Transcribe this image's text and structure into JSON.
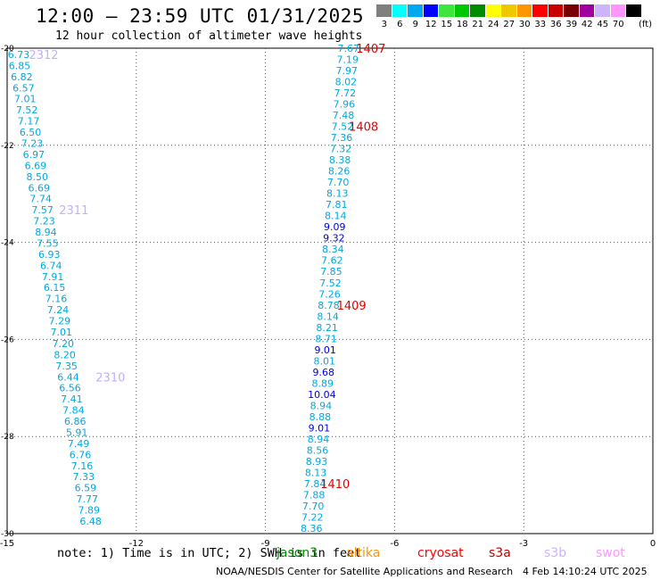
{
  "header": {
    "title": "12:00 — 23:59 UTC 01/31/2025",
    "subtitle": "12 hour collection of altimeter wave heights"
  },
  "legend": {
    "unit": "(ft)",
    "bins": [
      {
        "label": "3",
        "color": "#7f7f7f"
      },
      {
        "label": "6",
        "color": "#00ffff"
      },
      {
        "label": "9",
        "color": "#00a8f0"
      },
      {
        "label": "12",
        "color": "#0000ff"
      },
      {
        "label": "15",
        "color": "#3ce63c"
      },
      {
        "label": "18",
        "color": "#00c800"
      },
      {
        "label": "21",
        "color": "#008c00"
      },
      {
        "label": "24",
        "color": "#ffff00"
      },
      {
        "label": "27",
        "color": "#f0c800"
      },
      {
        "label": "30",
        "color": "#ff9600"
      },
      {
        "label": "33",
        "color": "#ff0000"
      },
      {
        "label": "36",
        "color": "#c80000"
      },
      {
        "label": "39",
        "color": "#780000"
      },
      {
        "label": "42",
        "color": "#a000a0"
      },
      {
        "label": "45",
        "color": "#cdb4ff"
      },
      {
        "label": "70",
        "color": "#ff96ff"
      },
      {
        "label": "",
        "color": "#000000"
      }
    ]
  },
  "chart_data": {
    "type": "scatter",
    "x_ticks": [
      "-15",
      "-12",
      "-9",
      "-6",
      "-3",
      "0"
    ],
    "y_ticks": [
      "-20",
      "-22",
      "-24",
      "-26",
      "-28",
      "-30"
    ],
    "xlim": [
      -15,
      0
    ],
    "ylim": [
      -30,
      -20
    ],
    "grid": true,
    "colors": {
      "cyan": "#00a8e0",
      "blue": "#0000e0",
      "pass_label": "#e00000",
      "s3b": "#c4b0f4"
    },
    "series": [
      {
        "name": "s3b",
        "points": [
          {
            "x": -14.73,
            "y": -20.13,
            "v": "6.73"
          },
          {
            "x": -14.71,
            "y": -20.36,
            "v": "6.85"
          },
          {
            "x": -14.66,
            "y": -20.59,
            "v": "6.82"
          },
          {
            "x": -14.62,
            "y": -20.82,
            "v": "6.57"
          },
          {
            "x": -14.58,
            "y": -21.04,
            "v": "7.01"
          },
          {
            "x": -14.54,
            "y": -21.27,
            "v": "7.52"
          },
          {
            "x": -14.5,
            "y": -21.5,
            "v": "7.17"
          },
          {
            "x": -14.46,
            "y": -21.73,
            "v": "6.50"
          },
          {
            "x": -14.42,
            "y": -21.96,
            "v": "7.23"
          },
          {
            "x": -14.38,
            "y": -22.19,
            "v": "6.97"
          },
          {
            "x": -14.34,
            "y": -22.42,
            "v": "6.69"
          },
          {
            "x": -14.3,
            "y": -22.65,
            "v": "8.50"
          },
          {
            "x": -14.26,
            "y": -22.88,
            "v": "6.69"
          },
          {
            "x": -14.22,
            "y": -23.1,
            "v": "7.74"
          },
          {
            "x": -14.18,
            "y": -23.33,
            "v": "7.57"
          },
          {
            "x": -14.14,
            "y": -23.56,
            "v": "7.23"
          },
          {
            "x": -14.1,
            "y": -23.79,
            "v": "8.94"
          },
          {
            "x": -14.06,
            "y": -24.02,
            "v": "7.55"
          },
          {
            "x": -14.02,
            "y": -24.25,
            "v": "6.93"
          },
          {
            "x": -13.98,
            "y": -24.48,
            "v": "6.74"
          },
          {
            "x": -13.94,
            "y": -24.71,
            "v": "7.91"
          },
          {
            "x": -13.9,
            "y": -24.93,
            "v": "6.15"
          },
          {
            "x": -13.86,
            "y": -25.16,
            "v": "7.16"
          },
          {
            "x": -13.82,
            "y": -25.39,
            "v": "7.24"
          },
          {
            "x": -13.78,
            "y": -25.62,
            "v": "7.29"
          },
          {
            "x": -13.74,
            "y": -25.85,
            "v": "7.01"
          },
          {
            "x": -13.7,
            "y": -26.08,
            "v": "7.20"
          },
          {
            "x": -13.66,
            "y": -26.31,
            "v": "8.20"
          },
          {
            "x": -13.62,
            "y": -26.54,
            "v": "7.35"
          },
          {
            "x": -13.58,
            "y": -26.77,
            "v": "6.44"
          },
          {
            "x": -13.54,
            "y": -26.99,
            "v": "6.56"
          },
          {
            "x": -13.5,
            "y": -27.22,
            "v": "7.41"
          },
          {
            "x": -13.46,
            "y": -27.45,
            "v": "7.84"
          },
          {
            "x": -13.42,
            "y": -27.68,
            "v": "6.86"
          },
          {
            "x": -13.38,
            "y": -27.91,
            "v": "5.91"
          },
          {
            "x": -13.34,
            "y": -28.14,
            "v": "7.49"
          },
          {
            "x": -13.3,
            "y": -28.37,
            "v": "6.76"
          },
          {
            "x": -13.26,
            "y": -28.6,
            "v": "7.16"
          },
          {
            "x": -13.22,
            "y": -28.82,
            "v": "7.33"
          },
          {
            "x": -13.18,
            "y": -29.05,
            "v": "6.59"
          },
          {
            "x": -13.14,
            "y": -29.28,
            "v": "7.77"
          },
          {
            "x": -13.1,
            "y": -29.51,
            "v": "7.89"
          },
          {
            "x": -13.06,
            "y": -29.74,
            "v": "6.48"
          }
        ],
        "pass_labels": [
          {
            "x": -14.15,
            "y": -20.13,
            "text": "2312"
          },
          {
            "x": -13.45,
            "y": -23.33,
            "text": "2311"
          },
          {
            "x": -12.6,
            "y": -26.77,
            "text": "2310"
          }
        ]
      },
      {
        "name": "s3a",
        "points": [
          {
            "x": -7.07,
            "y": -20.0,
            "v": "7.67"
          },
          {
            "x": -7.09,
            "y": -20.23,
            "v": "7.19"
          },
          {
            "x": -7.11,
            "y": -20.46,
            "v": "7.97"
          },
          {
            "x": -7.13,
            "y": -20.69,
            "v": "8.02"
          },
          {
            "x": -7.15,
            "y": -20.92,
            "v": "7.72"
          },
          {
            "x": -7.17,
            "y": -21.15,
            "v": "7.96"
          },
          {
            "x": -7.19,
            "y": -21.38,
            "v": "7.48"
          },
          {
            "x": -7.21,
            "y": -21.61,
            "v": "7.52"
          },
          {
            "x": -7.23,
            "y": -21.84,
            "v": "7.36"
          },
          {
            "x": -7.25,
            "y": -22.07,
            "v": "7.32"
          },
          {
            "x": -7.27,
            "y": -22.3,
            "v": "8.38"
          },
          {
            "x": -7.29,
            "y": -22.53,
            "v": "8.26"
          },
          {
            "x": -7.31,
            "y": -22.76,
            "v": "7.70"
          },
          {
            "x": -7.33,
            "y": -22.99,
            "v": "8.13"
          },
          {
            "x": -7.35,
            "y": -23.22,
            "v": "7.81"
          },
          {
            "x": -7.37,
            "y": -23.45,
            "v": "8.14"
          },
          {
            "x": -7.39,
            "y": -23.68,
            "v": "9.09"
          },
          {
            "x": -7.41,
            "y": -23.91,
            "v": "9.32"
          },
          {
            "x": -7.43,
            "y": -24.14,
            "v": "8.34"
          },
          {
            "x": -7.45,
            "y": -24.37,
            "v": "7.62"
          },
          {
            "x": -7.47,
            "y": -24.6,
            "v": "7.85"
          },
          {
            "x": -7.49,
            "y": -24.83,
            "v": "7.52"
          },
          {
            "x": -7.51,
            "y": -25.06,
            "v": "7.26"
          },
          {
            "x": -7.53,
            "y": -25.29,
            "v": "8.78"
          },
          {
            "x": -7.55,
            "y": -25.52,
            "v": "8.14"
          },
          {
            "x": -7.57,
            "y": -25.75,
            "v": "8.21"
          },
          {
            "x": -7.59,
            "y": -25.98,
            "v": "8.71"
          },
          {
            "x": -7.61,
            "y": -26.21,
            "v": "9.01"
          },
          {
            "x": -7.63,
            "y": -26.44,
            "v": "8.01"
          },
          {
            "x": -7.65,
            "y": -26.67,
            "v": "9.68"
          },
          {
            "x": -7.67,
            "y": -26.9,
            "v": "8.89"
          },
          {
            "x": -7.69,
            "y": -27.13,
            "v": "10.04"
          },
          {
            "x": -7.71,
            "y": -27.36,
            "v": "8.94"
          },
          {
            "x": -7.73,
            "y": -27.59,
            "v": "8.88"
          },
          {
            "x": -7.75,
            "y": -27.82,
            "v": "9.01"
          },
          {
            "x": -7.77,
            "y": -28.05,
            "v": "8.94"
          },
          {
            "x": -7.79,
            "y": -28.28,
            "v": "8.56"
          },
          {
            "x": -7.81,
            "y": -28.51,
            "v": "8.93"
          },
          {
            "x": -7.83,
            "y": -28.74,
            "v": "8.13"
          },
          {
            "x": -7.85,
            "y": -28.97,
            "v": "7.84"
          },
          {
            "x": -7.87,
            "y": -29.2,
            "v": "7.88"
          },
          {
            "x": -7.89,
            "y": -29.43,
            "v": "7.70"
          },
          {
            "x": -7.91,
            "y": -29.66,
            "v": "7.22"
          },
          {
            "x": -7.93,
            "y": -29.89,
            "v": "8.36"
          }
        ],
        "pass_labels": [
          {
            "x": -6.55,
            "y": -20.0,
            "text": "1407"
          },
          {
            "x": -6.72,
            "y": -21.61,
            "text": "1408"
          },
          {
            "x": -7.0,
            "y": -25.29,
            "text": "1409"
          },
          {
            "x": -7.38,
            "y": -28.97,
            "text": "1410"
          }
        ]
      }
    ]
  },
  "footer": {
    "note": "note: 1) Time is in UTC; 2) SWH is in feet",
    "satellites": [
      {
        "label": "jason3",
        "color": "#008c00"
      },
      {
        "label": "altika",
        "color": "#ff9600"
      },
      {
        "label": "cryosat",
        "color": "#ff0000"
      },
      {
        "label": "s3a",
        "color": "#c80000"
      },
      {
        "label": "s3b",
        "color": "#cdb4ff"
      },
      {
        "label": "swot",
        "color": "#ff96ff"
      }
    ],
    "credit": "NOAA/NESDIS Center for Satellite Applications and Research",
    "timestamp": "4 Feb 14:10:24 UTC 2025"
  }
}
